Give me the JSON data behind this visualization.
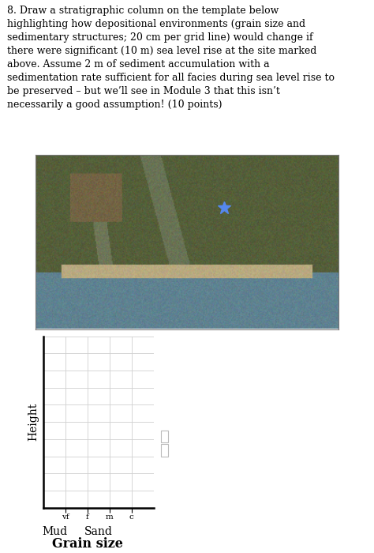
{
  "text_block": "8. Draw a stratigraphic column on the template below\nhighlighting how depositional environments (grain size and\nsedimentary structures; 20 cm per grid line) would change if\nthere were significant (10 m) sea level rise at the site marked\nabove. Assume 2 m of sediment accumulation with a\nsedimentation rate sufficient for all facies during sea level rise to\nbe preserved – but we’ll see in Module 3 that this isn’t\nnecessarily a good assumption! (10 points)",
  "graph_ylabel": "Height",
  "graph_xlabel_main": "Grain size",
  "graph_xlabel_sub1": "Mud",
  "graph_xlabel_sub2": "Sand",
  "graph_xlabel_ticks": [
    "vf",
    "f",
    "m",
    "c"
  ],
  "grid_color": "#d0d0d0",
  "axis_color": "#000000",
  "background_color": "#ffffff",
  "fig_width": 4.74,
  "fig_height": 7.0,
  "text_fontsize": 9.0,
  "ylabel_fontsize": 10,
  "xlabel_fontsize": 10,
  "tick_label_fontsize": 7.5,
  "star_color": "#5588ee"
}
